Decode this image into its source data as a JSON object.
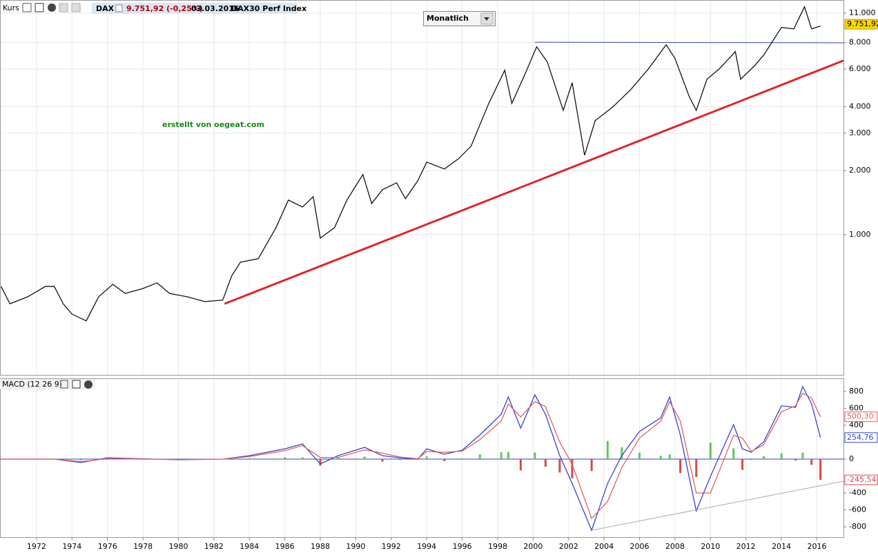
{
  "toolbar": {
    "label": "Kurs",
    "quote": "9.751,92 (-0,25%)",
    "date": "03.03.2016",
    "index_name": "DAX30 Perf Index",
    "interval": "Monatlich",
    "annotation": "erstellt von oegeat.com"
  },
  "chart_data": [
    {
      "type": "line",
      "log": true,
      "grid": true,
      "xlim": [
        1969.94,
        2017.5
      ],
      "xticks": [
        1972,
        1974,
        1976,
        1978,
        1980,
        1982,
        1984,
        1986,
        1988,
        1990,
        1992,
        1994,
        1996,
        1998,
        2000,
        2002,
        2004,
        2006,
        2008,
        2010,
        2012,
        2014,
        2016
      ],
      "ylim": [
        219,
        12680
      ],
      "yticks": [
        {
          "value": 11000,
          "label": "11.000"
        },
        {
          "value": 8000,
          "label": "8.000"
        },
        {
          "value": 6000,
          "label": "6.000"
        },
        {
          "value": 4000,
          "label": "4.000"
        },
        {
          "value": 3000,
          "label": "3.000"
        },
        {
          "value": 2000,
          "label": "2.000"
        },
        {
          "value": 1000,
          "label": "1.000"
        }
      ],
      "x": [
        1970.0,
        1970.5,
        1971.5,
        1972.5,
        1973.0,
        1973.5,
        1974.0,
        1974.8,
        1975.5,
        1976.3,
        1977.0,
        1978.0,
        1978.8,
        1979.5,
        1980.5,
        1981.5,
        1982.5,
        1983.0,
        1983.5,
        1984.5,
        1985.5,
        1986.2,
        1987.0,
        1987.6,
        1988.0,
        1988.8,
        1989.5,
        1990.4,
        1990.9,
        1991.5,
        1992.3,
        1992.8,
        1993.5,
        1994.0,
        1995.0,
        1995.8,
        1996.5,
        1997.5,
        1998.4,
        1998.8,
        1999.5,
        2000.2,
        2000.8,
        2001.7,
        2002.2,
        2002.9,
        2003.5,
        2004.5,
        2005.5,
        2006.5,
        2007.5,
        2008.0,
        2008.8,
        2009.2,
        2009.8,
        2010.5,
        2011.4,
        2011.7,
        2012.5,
        2013.0,
        2014.0,
        2014.7,
        2015.3,
        2015.7,
        2016.2
      ],
      "series": [
        {
          "name": "DAX",
          "color": "#111111",
          "values": [
            571,
            473,
            510,
            571,
            571,
            473,
            423,
            393,
            510,
            584,
            529,
            558,
            593,
            529,
            510,
            484,
            492,
            639,
            742,
            770,
            1078,
            1453,
            1349,
            1509,
            963,
            1078,
            1453,
            1916,
            1400,
            1626,
            1752,
            1475,
            1792,
            2192,
            2034,
            2276,
            2604,
            4140,
            5927,
            4140,
            5580,
            7641,
            6480,
            3840,
            5180,
            2363,
            3433,
            3990,
            4806,
            6015,
            7814,
            6730,
            4458,
            3840,
            5377,
            6015,
            7250,
            5377,
            6240,
            6985,
            9420,
            9280,
            11780,
            9280,
            9560
          ],
          "current": {
            "value": 9751.92,
            "label": "9.751,92"
          }
        }
      ],
      "lines": [
        {
          "x": [
            1982.6,
            2017.5
          ],
          "values": [
            473,
            6580
          ],
          "color": "#e0242a",
          "width": 3
        },
        {
          "x": [
            2000.1,
            2017.5
          ],
          "values": [
            8030,
            7980
          ],
          "color": "#3545a8",
          "width": 1
        }
      ]
    },
    {
      "type": "macd",
      "title": "MACD (12 26 9)",
      "ylim": [
        -922,
        955
      ],
      "yticks": [
        800,
        600,
        400,
        0,
        -400,
        -600,
        -800
      ],
      "zero_line_color": "#3344bb",
      "x": [
        1970,
        1973,
        1974.5,
        1976,
        1980,
        1982.5,
        1984,
        1986,
        1987,
        1988,
        1989,
        1990.5,
        1991.5,
        1992.5,
        1993.5,
        1994,
        1995,
        1996,
        1997,
        1998.2,
        1998.6,
        1999.3,
        2000.1,
        2000.7,
        2001.5,
        2002.2,
        2003.3,
        2004.2,
        2005,
        2006,
        2007.2,
        2007.7,
        2008.3,
        2009.2,
        2010,
        2011.3,
        2011.8,
        2012.3,
        2013,
        2014,
        2014.8,
        2015.2,
        2015.7,
        2016.2
      ],
      "series": [
        {
          "style": "line",
          "color": "#3344cc",
          "values": [
            0,
            0,
            -41,
            16,
            -8,
            0,
            41,
            122,
            180,
            -57,
            41,
            139,
            41,
            16,
            0,
            122,
            57,
            106,
            286,
            531,
            735,
            367,
            759,
            531,
            41,
            -286,
            -841,
            -286,
            41,
            327,
            490,
            735,
            286,
            -612,
            -204,
            408,
            122,
            82,
            204,
            629,
            612,
            857,
            653,
            254.76
          ],
          "current": {
            "value": 254.76,
            "label": "254,76"
          }
        },
        {
          "style": "line",
          "color": "#e06060",
          "values": [
            0,
            0,
            -30,
            5,
            -5,
            0,
            30,
            100,
            160,
            20,
            20,
            110,
            70,
            25,
            5,
            90,
            80,
            95,
            230,
            450,
            650,
            500,
            680,
            620,
            200,
            -60,
            -700,
            -500,
            -100,
            250,
            450,
            680,
            450,
            -400,
            -400,
            280,
            250,
            90,
            170,
            560,
            630,
            780,
            720,
            500.3
          ],
          "current": {
            "value": 500.3,
            "label": "500,30"
          }
        },
        {
          "style": "histogram",
          "color": "#66c35a",
          "negative_color": "#d94848",
          "values": [
            0,
            0,
            -11,
            11,
            -3,
            0,
            11,
            22,
            20,
            -77,
            21,
            29,
            -29,
            -9,
            -5,
            32,
            -23,
            11,
            56,
            81,
            85,
            -133,
            79,
            -89,
            -159,
            -226,
            -141,
            214,
            141,
            77,
            40,
            55,
            -164,
            -212,
            196,
            128,
            -128,
            -8,
            34,
            69,
            -18,
            77,
            -67,
            -245.54
          ],
          "current": {
            "value": -245.54,
            "label": "-245,54"
          }
        }
      ],
      "lines": [
        {
          "x": [
            2003.3,
            2017.5
          ],
          "values": [
            -841,
            -261
          ],
          "color": "#aaaaaa",
          "width": 1
        }
      ]
    }
  ]
}
